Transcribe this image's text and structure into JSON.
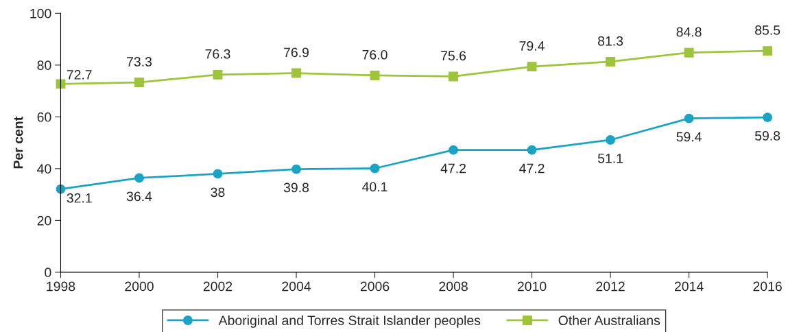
{
  "chart_data": {
    "type": "line",
    "ylabel": "Per cent",
    "x": [
      1998,
      2000,
      2002,
      2004,
      2006,
      2008,
      2010,
      2012,
      2014,
      2016
    ],
    "series": [
      {
        "name": "Aboriginal and Torres Strait Islander peoples",
        "color": "#1aa3c4",
        "marker": "circle",
        "values": [
          32.1,
          36.4,
          38,
          39.8,
          40.1,
          47.2,
          47.2,
          51.1,
          59.4,
          59.8
        ],
        "value_labels": [
          "32.1",
          "36.4",
          "38",
          "39.8",
          "40.1",
          "47.2",
          "47.2",
          "51.1",
          "59.4",
          "59.8"
        ]
      },
      {
        "name": "Other Australians",
        "color": "#9dc43a",
        "marker": "square",
        "values": [
          72.7,
          73.3,
          76.3,
          76.9,
          76.0,
          75.6,
          79.4,
          81.3,
          84.8,
          85.5
        ],
        "value_labels": [
          "72.7",
          "73.3",
          "76.3",
          "76.9",
          "76.0",
          "75.6",
          "79.4",
          "81.3",
          "84.8",
          "85.5"
        ]
      }
    ],
    "xlim": [
      1998,
      2016
    ],
    "xticks": [
      1998,
      2000,
      2002,
      2004,
      2006,
      2008,
      2010,
      2012,
      2014,
      2016
    ],
    "ylim": [
      0,
      100
    ],
    "yticks": [
      0,
      20,
      40,
      60,
      80,
      100
    ],
    "grid": false,
    "legend": "bottom"
  }
}
